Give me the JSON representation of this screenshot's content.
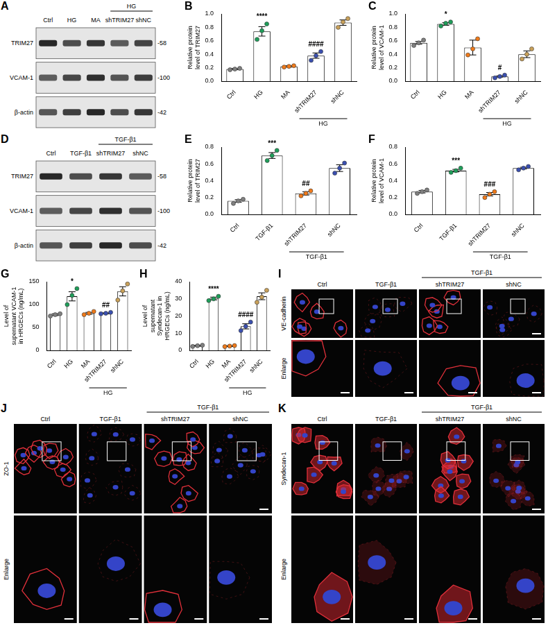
{
  "chart_data": [
    {
      "type": "bar",
      "panel": "B",
      "y_label": "Relative protein level of TRIM27",
      "categories": [
        "Ctrl",
        "HG",
        "MA",
        "shTRIM27",
        "shNC"
      ],
      "values": [
        0.18,
        0.74,
        0.22,
        0.38,
        0.87
      ],
      "errors": [
        0.01,
        0.07,
        0.01,
        0.04,
        0.04
      ],
      "points": [
        [
          0.17,
          0.18,
          0.19
        ],
        [
          0.62,
          0.75,
          0.85
        ],
        [
          0.21,
          0.22,
          0.23
        ],
        [
          0.31,
          0.38,
          0.44
        ],
        [
          0.8,
          0.88,
          0.93
        ]
      ],
      "colors": [
        "#808080",
        "#1f9e5a",
        "#f07a1a",
        "#3a4fb0",
        "#c9a15a"
      ],
      "annotations": [
        null,
        "****",
        null,
        "####",
        null
      ],
      "group_label": "HG",
      "group_categories": [
        "shTRIM27",
        "shNC"
      ],
      "ylim": [
        0,
        1
      ],
      "yticks": [
        {
          "value": 0,
          "label": "0.0"
        },
        0.2,
        0.4,
        0.6,
        0.8,
        {
          "value": 1,
          "label": "1.0"
        }
      ],
      "grid": false,
      "marker": "circle"
    },
    {
      "type": "bar",
      "panel": "C",
      "y_label": "Relative protein level of VCAM-1",
      "categories": [
        "Ctrl",
        "HG",
        "MA",
        "shTRIM27",
        "shNC"
      ],
      "values": [
        0.57,
        0.85,
        0.5,
        0.07,
        0.4
      ],
      "errors": [
        0.02,
        0.02,
        0.11,
        0.01,
        0.05
      ],
      "points": [
        [
          0.53,
          0.57,
          0.61
        ],
        [
          0.82,
          0.86,
          0.88
        ],
        [
          0.39,
          0.48,
          0.63
        ],
        [
          0.05,
          0.07,
          0.09
        ],
        [
          0.33,
          0.4,
          0.48
        ]
      ],
      "colors": [
        "#808080",
        "#1f9e5a",
        "#f07a1a",
        "#3a4fb0",
        "#c9a15a"
      ],
      "annotations": [
        null,
        "*",
        null,
        "#",
        null
      ],
      "group_label": "HG",
      "group_categories": [
        "shTRIM27",
        "shNC"
      ],
      "ylim": [
        0,
        1
      ],
      "yticks": [
        {
          "value": 0,
          "label": "0.0"
        },
        0.2,
        0.4,
        0.6,
        0.8,
        {
          "value": 1,
          "label": "1.0"
        }
      ],
      "grid": false,
      "marker": "circle"
    },
    {
      "type": "bar",
      "panel": "E",
      "y_label": "Relative protein level of TRIM27",
      "categories": [
        "Ctrl",
        "TGF-β1",
        "shTRIM27",
        "shNC"
      ],
      "values": [
        0.16,
        0.7,
        0.25,
        0.55
      ],
      "errors": [
        0.015,
        0.035,
        0.02,
        0.04
      ],
      "points": [
        [
          0.13,
          0.16,
          0.18
        ],
        [
          0.64,
          0.7,
          0.76
        ],
        [
          0.22,
          0.25,
          0.28
        ],
        [
          0.49,
          0.55,
          0.61
        ]
      ],
      "colors": [
        "#808080",
        "#1f9e5a",
        "#f07a1a",
        "#3a4fb0"
      ],
      "annotations": [
        null,
        "***",
        "##",
        null
      ],
      "group_label": "TGF-β1",
      "group_categories": [
        "shTRIM27",
        "shNC"
      ],
      "ylim": [
        0,
        0.8
      ],
      "yticks": [
        {
          "value": 0,
          "label": "0.0"
        },
        0.2,
        0.4,
        0.6,
        0.8
      ],
      "grid": false,
      "marker": "circle"
    },
    {
      "type": "bar",
      "panel": "F",
      "y_label": "Relative protein level of VCAM-1",
      "categories": [
        "Ctrl",
        "TGF-β1",
        "shTRIM27",
        "shNC"
      ],
      "values": [
        0.27,
        0.52,
        0.24,
        0.55
      ],
      "errors": [
        0.015,
        0.015,
        0.02,
        0.01
      ],
      "points": [
        [
          0.25,
          0.27,
          0.29
        ],
        [
          0.5,
          0.52,
          0.55
        ],
        [
          0.2,
          0.24,
          0.27
        ],
        [
          0.53,
          0.55,
          0.57
        ]
      ],
      "colors": [
        "#808080",
        "#1f9e5a",
        "#f07a1a",
        "#3a4fb0"
      ],
      "annotations": [
        null,
        "***",
        "###",
        null
      ],
      "group_label": "TGF-β1",
      "group_categories": [
        "shTRIM27",
        "shNC"
      ],
      "ylim": [
        0,
        0.8
      ],
      "yticks": [
        {
          "value": 0,
          "label": "0.0"
        },
        0.2,
        0.4,
        0.6,
        0.8
      ],
      "grid": false,
      "marker": "circle"
    },
    {
      "type": "bar",
      "panel": "G",
      "y_label": "Level of supernatant VCAM-1 in HRGECs (ng/mL)",
      "categories": [
        "Ctrl",
        "HG",
        "MA",
        "shTRIM27",
        "shNC"
      ],
      "values": [
        78,
        118,
        81,
        81,
        129
      ],
      "errors": [
        2,
        10,
        2,
        1,
        10
      ],
      "points": [
        [
          75,
          78,
          80
        ],
        [
          100,
          120,
          135
        ],
        [
          78,
          81,
          85
        ],
        [
          80,
          81,
          83
        ],
        [
          110,
          130,
          145
        ]
      ],
      "colors": [
        "#808080",
        "#1f9e5a",
        "#f07a1a",
        "#3a4fb0",
        "#c9a15a"
      ],
      "annotations": [
        null,
        "*",
        null,
        "##",
        null
      ],
      "group_label": "HG",
      "group_categories": [
        "shTRIM27",
        "shNC"
      ],
      "ylim": [
        0,
        150
      ],
      "yticks": [
        0,
        50,
        100,
        150
      ],
      "grid": false,
      "marker": "circle"
    },
    {
      "type": "bar",
      "panel": "H",
      "y_label": "Level of supernatant Syndecan-1 in HRGECs (ng/mL)",
      "categories": [
        "Ctrl",
        "HG",
        "MA",
        "shTRIM27",
        "shNC"
      ],
      "values": [
        2.7,
        30.2,
        2.5,
        14,
        31.5
      ],
      "errors": [
        0.3,
        0.8,
        0.2,
        1.5,
        2
      ],
      "points": [
        [
          2.3,
          2.7,
          3.0
        ],
        [
          29,
          30,
          31.5
        ],
        [
          2.2,
          2.5,
          2.8
        ],
        [
          11.5,
          14,
          16.5
        ],
        [
          28,
          31,
          35
        ]
      ],
      "colors": [
        "#808080",
        "#1f9e5a",
        "#f07a1a",
        "#3a4fb0",
        "#c9a15a"
      ],
      "annotations": [
        null,
        "****",
        null,
        "####",
        null
      ],
      "group_label": "HG",
      "group_categories": [
        "shTRIM27",
        "shNC"
      ],
      "ylim": [
        0,
        40
      ],
      "yticks": [
        0,
        10,
        20,
        30,
        40
      ],
      "grid": false,
      "marker": "circle"
    }
  ],
  "blots": [
    {
      "panel": "A",
      "lanes": [
        "Ctrl",
        "HG",
        "MA",
        "shTRIM27",
        "shNC"
      ],
      "group_label": "HG",
      "group_lanes": [
        "shTRIM27",
        "shNC"
      ],
      "rows": [
        {
          "name": "TRIM27",
          "mw": "-58"
        },
        {
          "name": "VCAM-1",
          "mw": "-100"
        },
        {
          "name": "β-actin",
          "mw": "-42"
        }
      ]
    },
    {
      "panel": "D",
      "lanes": [
        "Ctrl",
        "TGF-β1",
        "shTRIM27",
        "shNC"
      ],
      "group_label": "TGF-β1",
      "group_lanes": [
        "shTRIM27",
        "shNC"
      ],
      "rows": [
        {
          "name": "TRIM27",
          "mw": "-58"
        },
        {
          "name": "VCAM-1",
          "mw": "-100"
        },
        {
          "name": "β-actin",
          "mw": "-42"
        }
      ]
    }
  ],
  "images": [
    {
      "panel": "I",
      "columns": [
        "Ctrl",
        "TGF-β1",
        "shTRIM27",
        "shNC"
      ],
      "group_label": "TGF-β1",
      "group_columns": [
        "shTRIM27",
        "shNC"
      ],
      "row_labels": [
        "VE-cadherin",
        "Enlarge"
      ]
    },
    {
      "panel": "J",
      "columns": [
        "Ctrl",
        "TGF-β1",
        "shTRIM27",
        "shNC"
      ],
      "group_label": "TGF-β1",
      "group_columns": [
        "shTRIM27",
        "shNC"
      ],
      "row_labels": [
        "ZO-1",
        "Enlarge"
      ]
    },
    {
      "panel": "K",
      "columns": [
        "Ctrl",
        "TGF-β1",
        "shTRIM27",
        "shNC"
      ],
      "group_label": "TGF-β1",
      "group_columns": [
        "shTRIM27",
        "shNC"
      ],
      "row_labels": [
        "Syndecan-1",
        "Enlarge"
      ]
    }
  ]
}
